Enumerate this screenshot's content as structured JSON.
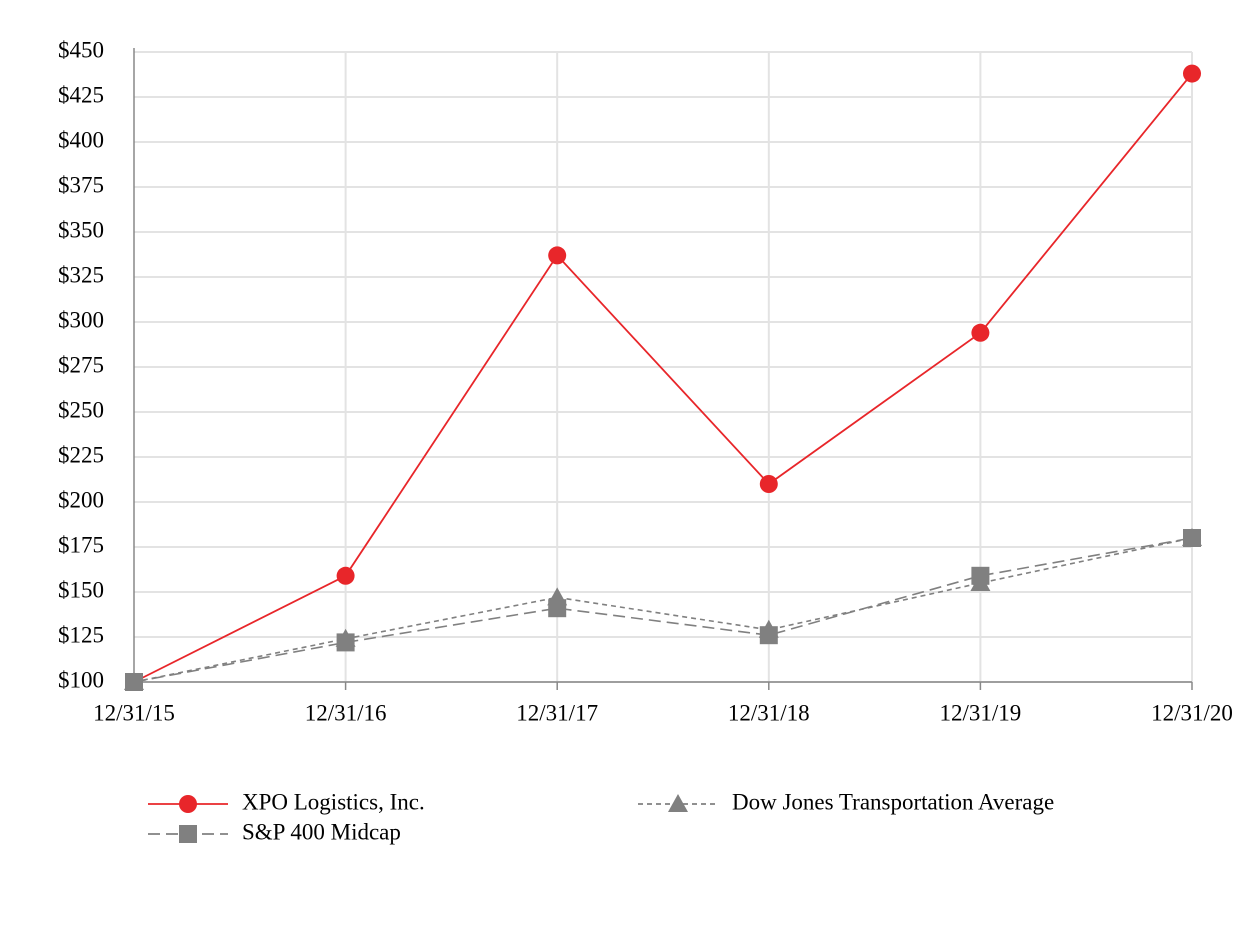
{
  "chart_data": {
    "type": "line",
    "categories": [
      "12/31/15",
      "12/31/16",
      "12/31/17",
      "12/31/18",
      "12/31/19",
      "12/31/20"
    ],
    "series": [
      {
        "name": "XPO Logistics, Inc.",
        "color": "#e8262a",
        "marker": "circle",
        "line_style": "solid",
        "values": [
          100,
          159,
          337,
          210,
          294,
          438
        ]
      },
      {
        "name": "Dow Jones Transportation Average",
        "color": "#808080",
        "marker": "triangle",
        "line_style": "dotted",
        "values": [
          100,
          124,
          147,
          129,
          155,
          180
        ]
      },
      {
        "name": "S&P 400 Midcap",
        "color": "#808080",
        "marker": "square",
        "line_style": "dashed",
        "values": [
          100,
          122,
          141,
          126,
          159,
          180
        ]
      }
    ],
    "ylim": [
      100,
      450
    ],
    "yticks": [
      {
        "value": 100,
        "label": "$100"
      },
      {
        "value": 125,
        "label": "$125"
      },
      {
        "value": 150,
        "label": "$150"
      },
      {
        "value": 175,
        "label": "$175"
      },
      {
        "value": 200,
        "label": "$200"
      },
      {
        "value": 225,
        "label": "$225"
      },
      {
        "value": 250,
        "label": "$250"
      },
      {
        "value": 275,
        "label": "$275"
      },
      {
        "value": 300,
        "label": "$300"
      },
      {
        "value": 325,
        "label": "$325"
      },
      {
        "value": 350,
        "label": "$350"
      },
      {
        "value": 375,
        "label": "$375"
      },
      {
        "value": 400,
        "label": "$400"
      },
      {
        "value": 425,
        "label": "$425"
      },
      {
        "value": 450,
        "label": "$450"
      }
    ],
    "grid": true
  }
}
